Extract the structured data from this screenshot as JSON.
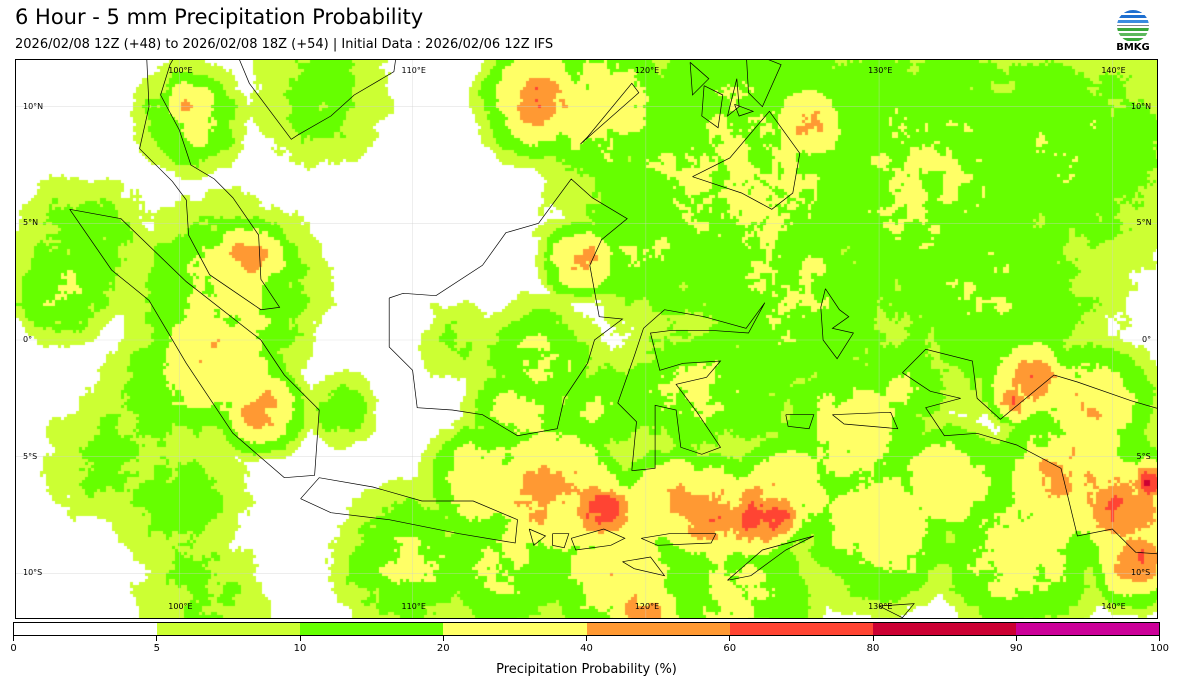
{
  "header": {
    "title": "6 Hour - 5 mm Precipitation Probability",
    "subtitle": "2026/02/08 12Z (+48) to 2026/02/08 18Z (+54) | Initial Data : 2026/02/06 12Z IFS",
    "logo_text": "BMKG"
  },
  "map": {
    "lon_range": [
      93.0,
      142.0
    ],
    "lat_range": [
      -12.0,
      12.0
    ],
    "lon_labels": [
      {
        "lon": 100,
        "label": "100°E"
      },
      {
        "lon": 110,
        "label": "110°E"
      },
      {
        "lon": 120,
        "label": "120°E"
      },
      {
        "lon": 130,
        "label": "130°E"
      },
      {
        "lon": 140,
        "label": "140°E"
      }
    ],
    "lat_labels": [
      {
        "lat": 10,
        "label": "10°N"
      },
      {
        "lat": 5,
        "label": "5°N"
      },
      {
        "lat": 0,
        "label": "0°"
      },
      {
        "lat": -5,
        "label": "5°S"
      },
      {
        "lat": -10,
        "label": "10°S"
      }
    ],
    "precip_field_blobs_lon_lat_radius_prob": [
      [
        124,
        7,
        7,
        22
      ],
      [
        132,
        7,
        7,
        20
      ],
      [
        138,
        8,
        5,
        18
      ],
      [
        126,
        2,
        5,
        20
      ],
      [
        135,
        2,
        5,
        18
      ],
      [
        120,
        4,
        3,
        18
      ],
      [
        118,
        10,
        3,
        30
      ],
      [
        115.5,
        10.2,
        2,
        48
      ],
      [
        127,
        9.2,
        1.5,
        45
      ],
      [
        106,
        10.5,
        3,
        14
      ],
      [
        100.5,
        9.5,
        2,
        25
      ],
      [
        100.5,
        10,
        1.2,
        40
      ],
      [
        96,
        4,
        3,
        15
      ],
      [
        102,
        2,
        3.5,
        25
      ],
      [
        101.5,
        -1,
        2.5,
        40
      ],
      [
        103,
        3.5,
        1.5,
        45
      ],
      [
        103.5,
        -3,
        1.5,
        48
      ],
      [
        100,
        -2,
        3,
        18
      ],
      [
        97,
        -5,
        3,
        12
      ],
      [
        100,
        -7,
        3,
        14
      ],
      [
        117.2,
        3.4,
        1.3,
        48
      ],
      [
        115.5,
        -1,
        2.5,
        22
      ],
      [
        114.5,
        -3,
        2,
        25
      ],
      [
        112,
        0,
        2,
        10
      ],
      [
        118,
        -3,
        2,
        22
      ],
      [
        122,
        -2,
        3,
        22
      ],
      [
        124,
        -2,
        3,
        18
      ],
      [
        129,
        -4,
        3,
        30
      ],
      [
        131,
        -2,
        2,
        22
      ],
      [
        116,
        -6.5,
        2.5,
        50
      ],
      [
        118,
        -7.3,
        1.5,
        68
      ],
      [
        121,
        -7,
        2,
        45
      ],
      [
        123,
        -7.5,
        2,
        55
      ],
      [
        125.6,
        -7.5,
        1,
        85
      ],
      [
        124.5,
        -7.6,
        1.6,
        65
      ],
      [
        126,
        -6.5,
        2,
        40
      ],
      [
        113,
        -6,
        2,
        35
      ],
      [
        110,
        -9.5,
        3,
        20
      ],
      [
        114,
        -9.5,
        3,
        22
      ],
      [
        119,
        -10,
        3,
        30
      ],
      [
        120,
        -11.5,
        1.5,
        50
      ],
      [
        124,
        -11,
        3,
        25
      ],
      [
        130,
        -8,
        3,
        30
      ],
      [
        133,
        -6,
        2,
        40
      ],
      [
        136.5,
        -1.8,
        1.6,
        55
      ],
      [
        135.8,
        -2.6,
        0.8,
        65
      ],
      [
        139,
        -3,
        2.5,
        35
      ],
      [
        138,
        -6,
        2.5,
        45
      ],
      [
        140.5,
        -7,
        2,
        55
      ],
      [
        141.6,
        -6,
        0.8,
        85
      ],
      [
        141,
        -9.5,
        1.5,
        55
      ],
      [
        136,
        -9,
        3,
        30
      ],
      [
        107,
        -3,
        1.5,
        15
      ],
      [
        101,
        -11,
        3,
        12
      ],
      [
        95,
        2,
        2,
        22
      ]
    ]
  },
  "colorbar": {
    "levels": [
      0,
      5,
      10,
      20,
      40,
      60,
      80,
      90,
      100
    ],
    "tick_labels": [
      "0",
      "5",
      "10",
      "20",
      "40",
      "60",
      "80",
      "90",
      "100"
    ],
    "colors": [
      "#ffffff",
      "#ccff33",
      "#66ff00",
      "#ffff66",
      "#ff9933",
      "#ff4433",
      "#cc0033",
      "#cc0099"
    ],
    "label": "Precipitation Probability (%)"
  }
}
